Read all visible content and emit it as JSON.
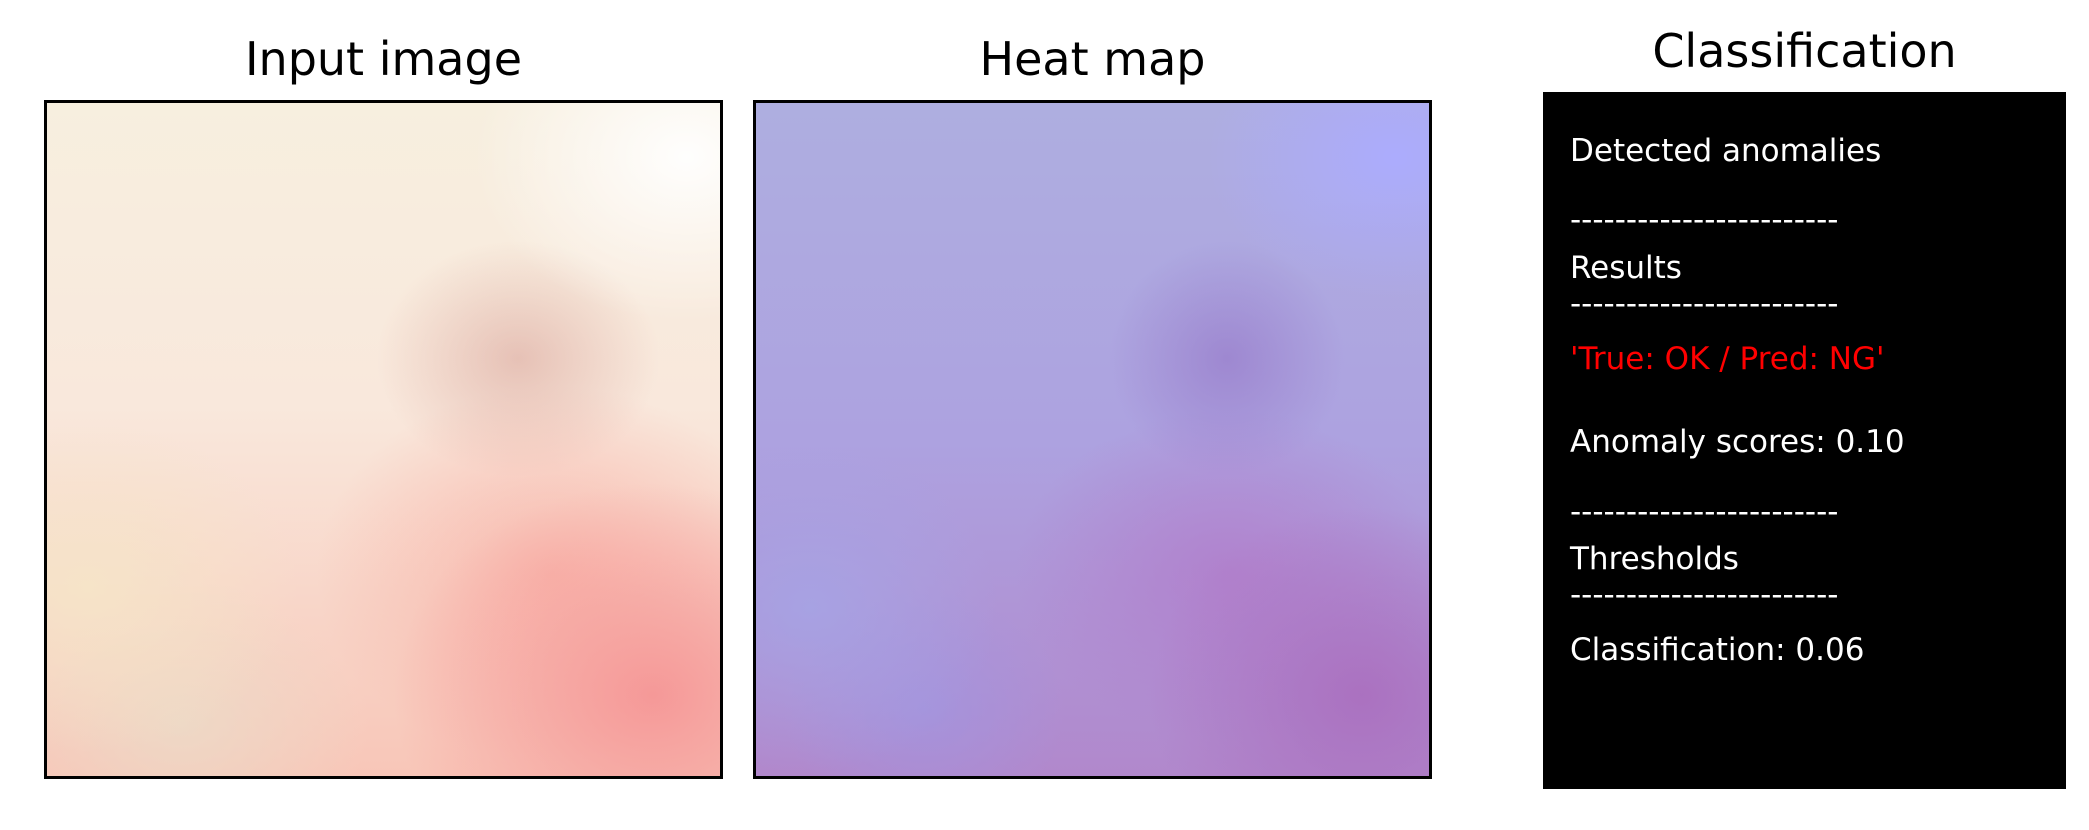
{
  "panels": {
    "input_title": "Input image",
    "heat_title": "Heat map",
    "classification_title": "Classification"
  },
  "classification": {
    "detected": "Detected anomalies",
    "divider": "------------------------",
    "results_label": "Results",
    "prediction": "'True: OK / Pred: NG'",
    "score": "Anomaly scores: 0.10",
    "thresholds_label": "Thresholds",
    "threshold": "Classification: 0.06"
  },
  "colors": {
    "panel_background": "#000000",
    "panel_text": "#ffffff",
    "prediction_text": "#ff0000"
  }
}
